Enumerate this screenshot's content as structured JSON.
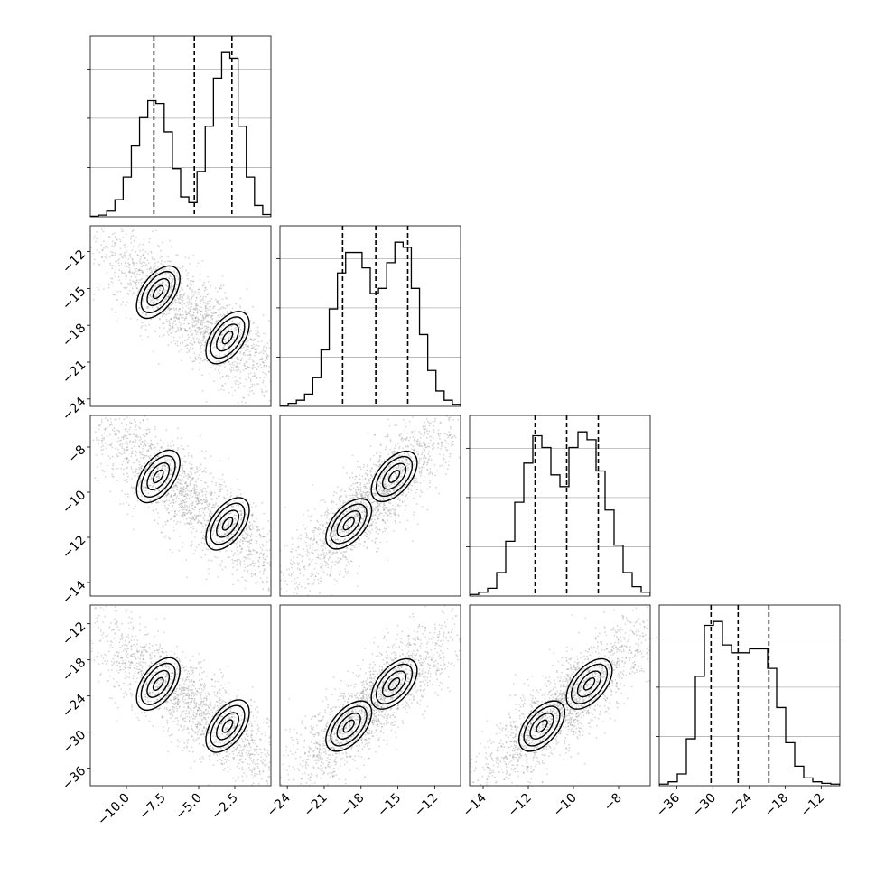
{
  "chart_data": {
    "type": "corner",
    "params": [
      {
        "range": [
          -12.5,
          0.0
        ],
        "ticks": [
          -10.0,
          -7.5,
          -5.0,
          -2.5
        ],
        "tick_labels": [
          "−10.0",
          "−7.5",
          "−5.0",
          "−2.5"
        ],
        "quantiles": [
          -8.1,
          -5.3,
          -2.7
        ]
      },
      {
        "range": [
          -24.6,
          -9.9
        ],
        "ticks": [
          -24,
          -21,
          -18,
          -15,
          -12
        ],
        "tick_labels": [
          "−24",
          "−21",
          "−18",
          "−15",
          "−12"
        ],
        "quantiles": [
          -19.5,
          -16.8,
          -14.2
        ]
      },
      {
        "range": [
          -14.6,
          -6.6
        ],
        "ticks": [
          -14,
          -12,
          -10,
          -8
        ],
        "tick_labels": [
          "−14",
          "−12",
          "−10",
          "−8"
        ],
        "quantiles": [
          -11.7,
          -10.3,
          -8.9
        ]
      },
      {
        "range": [
          -38.9,
          -8.9
        ],
        "ticks": [
          -36,
          -30,
          -24,
          -18,
          -12
        ],
        "tick_labels": [
          "−36",
          "−30",
          "−24",
          "−18",
          "−12"
        ],
        "quantiles": [
          -30.3,
          -25.8,
          -20.7
        ]
      }
    ],
    "diagonal_histograms": [
      {
        "counts": [
          1,
          3,
          10,
          30,
          70,
          125,
          175,
          205,
          200,
          150,
          85,
          35,
          25,
          80,
          160,
          245,
          290,
          280,
          160,
          70,
          20,
          4
        ]
      },
      {
        "counts": [
          1,
          3,
          6,
          12,
          28,
          55,
          95,
          130,
          150,
          150,
          135,
          110,
          115,
          140,
          160,
          155,
          115,
          70,
          35,
          15,
          6,
          2
        ]
      },
      {
        "counts": [
          2,
          5,
          10,
          30,
          70,
          120,
          170,
          205,
          190,
          155,
          140,
          190,
          210,
          200,
          160,
          110,
          65,
          30,
          12,
          5
        ]
      },
      {
        "counts": [
          2,
          5,
          15,
          60,
          140,
          205,
          210,
          180,
          170,
          170,
          175,
          175,
          150,
          100,
          55,
          25,
          10,
          5,
          3,
          2
        ]
      }
    ],
    "modes": [
      [
        -7.8,
        -15.3,
        -9.3,
        -22.0
      ],
      [
        -3.0,
        -19.0,
        -11.4,
        -29.0
      ]
    ]
  }
}
